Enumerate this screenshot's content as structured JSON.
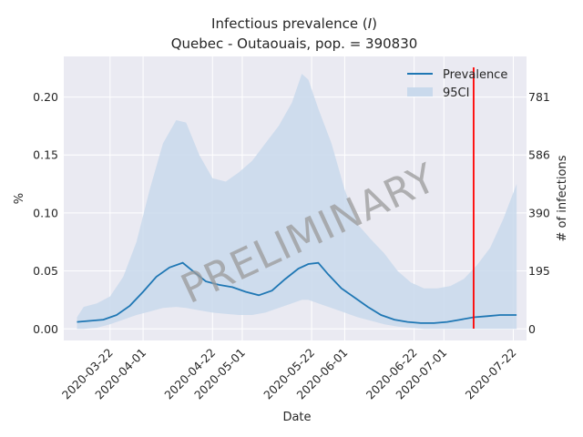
{
  "chart_data": {
    "type": "line",
    "title": "Infectious prevalence (I)",
    "title_prefix": "Infectious prevalence (",
    "title_symbol": "I",
    "title_suffix": ")",
    "subtitle": "Quebec - Outaouais, pop. = 390830",
    "xlabel": "Date",
    "ylabel": "%",
    "ylabel_right": "# of infections",
    "watermark": "PRELIMINARY",
    "x_range": [
      "2020-03-08",
      "2020-07-26"
    ],
    "ylim": [
      -0.01,
      0.235
    ],
    "yticks": [
      0.0,
      0.05,
      0.1,
      0.15,
      0.2
    ],
    "ytick_labels": [
      "0.00",
      "0.05",
      "0.10",
      "0.15",
      "0.20"
    ],
    "right_ticks": [
      0,
      195,
      390,
      586,
      781
    ],
    "xticks": [
      "2020-03-22",
      "2020-04-01",
      "2020-04-22",
      "2020-05-01",
      "2020-05-22",
      "2020-06-01",
      "2020-06-22",
      "2020-07-01",
      "2020-07-22"
    ],
    "grid": true,
    "legend_position": "top-right",
    "vline": {
      "x": "2020-07-10",
      "color": "#ff0000"
    },
    "colors": {
      "line": "#1f77b4",
      "band": "#c9d9ec",
      "background": "#eaeaf2"
    },
    "series": [
      {
        "name": "Prevalence",
        "kind": "line",
        "x": [
          "2020-03-12",
          "2020-03-16",
          "2020-03-20",
          "2020-03-24",
          "2020-03-28",
          "2020-04-01",
          "2020-04-05",
          "2020-04-09",
          "2020-04-13",
          "2020-04-16",
          "2020-04-20",
          "2020-04-24",
          "2020-04-28",
          "2020-05-02",
          "2020-05-06",
          "2020-05-10",
          "2020-05-14",
          "2020-05-18",
          "2020-05-21",
          "2020-05-24",
          "2020-05-27",
          "2020-05-31",
          "2020-06-04",
          "2020-06-08",
          "2020-06-12",
          "2020-06-16",
          "2020-06-20",
          "2020-06-24",
          "2020-06-28",
          "2020-07-02",
          "2020-07-06",
          "2020-07-10",
          "2020-07-14",
          "2020-07-18",
          "2020-07-23"
        ],
        "y": [
          0.006,
          0.007,
          0.008,
          0.012,
          0.02,
          0.032,
          0.045,
          0.053,
          0.057,
          0.05,
          0.041,
          0.038,
          0.036,
          0.032,
          0.029,
          0.033,
          0.043,
          0.052,
          0.056,
          0.057,
          0.047,
          0.035,
          0.027,
          0.019,
          0.012,
          0.008,
          0.006,
          0.005,
          0.005,
          0.006,
          0.008,
          0.01,
          0.011,
          0.012,
          0.012
        ]
      },
      {
        "name": "95CI",
        "kind": "band",
        "x": [
          "2020-03-12",
          "2020-03-14",
          "2020-03-18",
          "2020-03-22",
          "2020-03-26",
          "2020-03-30",
          "2020-04-03",
          "2020-04-07",
          "2020-04-11",
          "2020-04-14",
          "2020-04-18",
          "2020-04-22",
          "2020-04-26",
          "2020-04-30",
          "2020-05-04",
          "2020-05-08",
          "2020-05-12",
          "2020-05-16",
          "2020-05-19",
          "2020-05-21",
          "2020-05-24",
          "2020-05-28",
          "2020-06-01",
          "2020-06-05",
          "2020-06-09",
          "2020-06-13",
          "2020-06-17",
          "2020-06-21",
          "2020-06-25",
          "2020-06-29",
          "2020-07-03",
          "2020-07-07",
          "2020-07-11",
          "2020-07-15",
          "2020-07-19",
          "2020-07-23"
        ],
        "upper": [
          0.01,
          0.019,
          0.022,
          0.028,
          0.045,
          0.075,
          0.12,
          0.16,
          0.18,
          0.178,
          0.15,
          0.13,
          0.127,
          0.135,
          0.145,
          0.16,
          0.175,
          0.195,
          0.22,
          0.215,
          0.19,
          0.16,
          0.12,
          0.09,
          0.077,
          0.065,
          0.05,
          0.04,
          0.035,
          0.035,
          0.037,
          0.043,
          0.055,
          0.07,
          0.095,
          0.125
        ],
        "lower": [
          0.0,
          0.0,
          0.001,
          0.004,
          0.008,
          0.012,
          0.015,
          0.018,
          0.019,
          0.018,
          0.016,
          0.014,
          0.013,
          0.012,
          0.012,
          0.014,
          0.018,
          0.022,
          0.025,
          0.025,
          0.022,
          0.018,
          0.014,
          0.01,
          0.007,
          0.004,
          0.002,
          0.001,
          0.0,
          0.0,
          0.0,
          0.0,
          0.0,
          0.0,
          0.0,
          0.0
        ]
      }
    ]
  }
}
